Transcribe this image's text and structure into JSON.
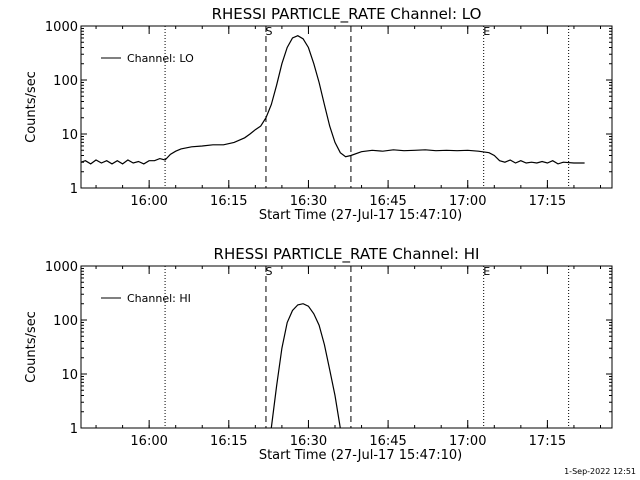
{
  "footer_timestamp": "1-Sep-2022 12:51",
  "chart_data": [
    {
      "type": "line",
      "title": "RHESSI PARTICLE_RATE Channel: LO",
      "xlabel": "Start Time (27-Jul-17 15:47:10)",
      "ylabel": "Counts/sec",
      "yscale": "log",
      "ylim": [
        1,
        1000
      ],
      "xlim": [
        "15:47:10",
        "17:27:10"
      ],
      "x_ticks": [
        "16:00",
        "16:15",
        "16:30",
        "16:45",
        "17:00",
        "17:15"
      ],
      "y_ticks": [
        "1",
        "10",
        "100",
        "1000"
      ],
      "grid": false,
      "legend": {
        "position": "top-left",
        "entries": [
          "Channel: LO"
        ]
      },
      "markers": [
        {
          "type": "dotted",
          "x": "16:03",
          "label": ""
        },
        {
          "type": "dashed",
          "x": "16:22",
          "label": "S"
        },
        {
          "type": "dashed",
          "x": "16:38",
          "label": ""
        },
        {
          "type": "dotted",
          "x": "17:03",
          "label": "E"
        },
        {
          "type": "dotted",
          "x": "17:19",
          "label": ""
        }
      ],
      "series": [
        {
          "name": "Channel: LO",
          "points": [
            [
              "15:47:10",
              3.0
            ],
            [
              "15:48",
              3.2
            ],
            [
              "15:49",
              2.8
            ],
            [
              "15:50",
              3.3
            ],
            [
              "15:51",
              2.9
            ],
            [
              "15:52",
              3.2
            ],
            [
              "15:53",
              2.8
            ],
            [
              "15:54",
              3.2
            ],
            [
              "15:55",
              2.8
            ],
            [
              "15:56",
              3.3
            ],
            [
              "15:57",
              2.9
            ],
            [
              "15:58",
              3.1
            ],
            [
              "15:59",
              2.8
            ],
            [
              "16:00",
              3.2
            ],
            [
              "16:01",
              3.2
            ],
            [
              "16:02",
              3.5
            ],
            [
              "16:03",
              3.3
            ],
            [
              "16:04",
              4.2
            ],
            [
              "16:05",
              4.8
            ],
            [
              "16:06",
              5.3
            ],
            [
              "16:08",
              5.8
            ],
            [
              "16:10",
              6.0
            ],
            [
              "16:12",
              6.3
            ],
            [
              "16:14",
              6.3
            ],
            [
              "16:16",
              7.0
            ],
            [
              "16:18",
              8.5
            ],
            [
              "16:19",
              10.0
            ],
            [
              "16:20",
              12.0
            ],
            [
              "16:21",
              14.0
            ],
            [
              "16:22",
              20.0
            ],
            [
              "16:23",
              35.0
            ],
            [
              "16:24",
              80.0
            ],
            [
              "16:25",
              200.0
            ],
            [
              "16:26",
              400.0
            ],
            [
              "16:27",
              600.0
            ],
            [
              "16:28",
              660.0
            ],
            [
              "16:29",
              580.0
            ],
            [
              "16:30",
              400.0
            ],
            [
              "16:31",
              200.0
            ],
            [
              "16:32",
              90.0
            ],
            [
              "16:33",
              35.0
            ],
            [
              "16:34",
              14.0
            ],
            [
              "16:35",
              7.0
            ],
            [
              "16:36",
              4.5
            ],
            [
              "16:37",
              3.8
            ],
            [
              "16:38",
              4.0
            ],
            [
              "16:40",
              4.7
            ],
            [
              "16:42",
              5.0
            ],
            [
              "16:44",
              4.8
            ],
            [
              "16:46",
              5.1
            ],
            [
              "16:48",
              4.9
            ],
            [
              "16:50",
              5.0
            ],
            [
              "16:52",
              5.1
            ],
            [
              "16:54",
              4.9
            ],
            [
              "16:56",
              5.0
            ],
            [
              "16:58",
              4.9
            ],
            [
              "17:00",
              5.0
            ],
            [
              "17:02",
              4.8
            ],
            [
              "17:04",
              4.5
            ],
            [
              "17:05",
              4.0
            ],
            [
              "17:06",
              3.2
            ],
            [
              "17:07",
              3.0
            ],
            [
              "17:08",
              3.3
            ],
            [
              "17:09",
              2.9
            ],
            [
              "17:10",
              3.2
            ],
            [
              "17:11",
              2.9
            ],
            [
              "17:12",
              3.0
            ],
            [
              "17:13",
              2.9
            ],
            [
              "17:14",
              3.1
            ],
            [
              "17:15",
              2.9
            ],
            [
              "17:16",
              3.2
            ],
            [
              "17:17",
              2.8
            ],
            [
              "17:18",
              3.0
            ],
            [
              "17:20",
              2.9
            ],
            [
              "17:22",
              2.9
            ]
          ]
        }
      ]
    },
    {
      "type": "line",
      "title": "RHESSI PARTICLE_RATE Channel: HI",
      "xlabel": "Start Time (27-Jul-17 15:47:10)",
      "ylabel": "Counts/sec",
      "yscale": "log",
      "ylim": [
        1,
        1000
      ],
      "xlim": [
        "15:47:10",
        "17:27:10"
      ],
      "x_ticks": [
        "16:00",
        "16:15",
        "16:30",
        "16:45",
        "17:00",
        "17:15"
      ],
      "y_ticks": [
        "1",
        "10",
        "100",
        "1000"
      ],
      "grid": false,
      "legend": {
        "position": "top-left",
        "entries": [
          "Channel: HI"
        ]
      },
      "markers": [
        {
          "type": "dotted",
          "x": "16:03",
          "label": ""
        },
        {
          "type": "dashed",
          "x": "16:22",
          "label": "S"
        },
        {
          "type": "dashed",
          "x": "16:38",
          "label": ""
        },
        {
          "type": "dotted",
          "x": "17:03",
          "label": "E"
        },
        {
          "type": "dotted",
          "x": "17:19",
          "label": ""
        }
      ],
      "series": [
        {
          "name": "Channel: HI",
          "points": [
            [
              "16:23",
              1.0
            ],
            [
              "16:24",
              6.0
            ],
            [
              "16:25",
              30.0
            ],
            [
              "16:26",
              90.0
            ],
            [
              "16:27",
              150.0
            ],
            [
              "16:28",
              190.0
            ],
            [
              "16:29",
              200.0
            ],
            [
              "16:30",
              180.0
            ],
            [
              "16:31",
              130.0
            ],
            [
              "16:32",
              80.0
            ],
            [
              "16:33",
              35.0
            ],
            [
              "16:34",
              12.0
            ],
            [
              "16:35",
              4.0
            ],
            [
              "16:36",
              1.0
            ]
          ]
        }
      ]
    }
  ]
}
